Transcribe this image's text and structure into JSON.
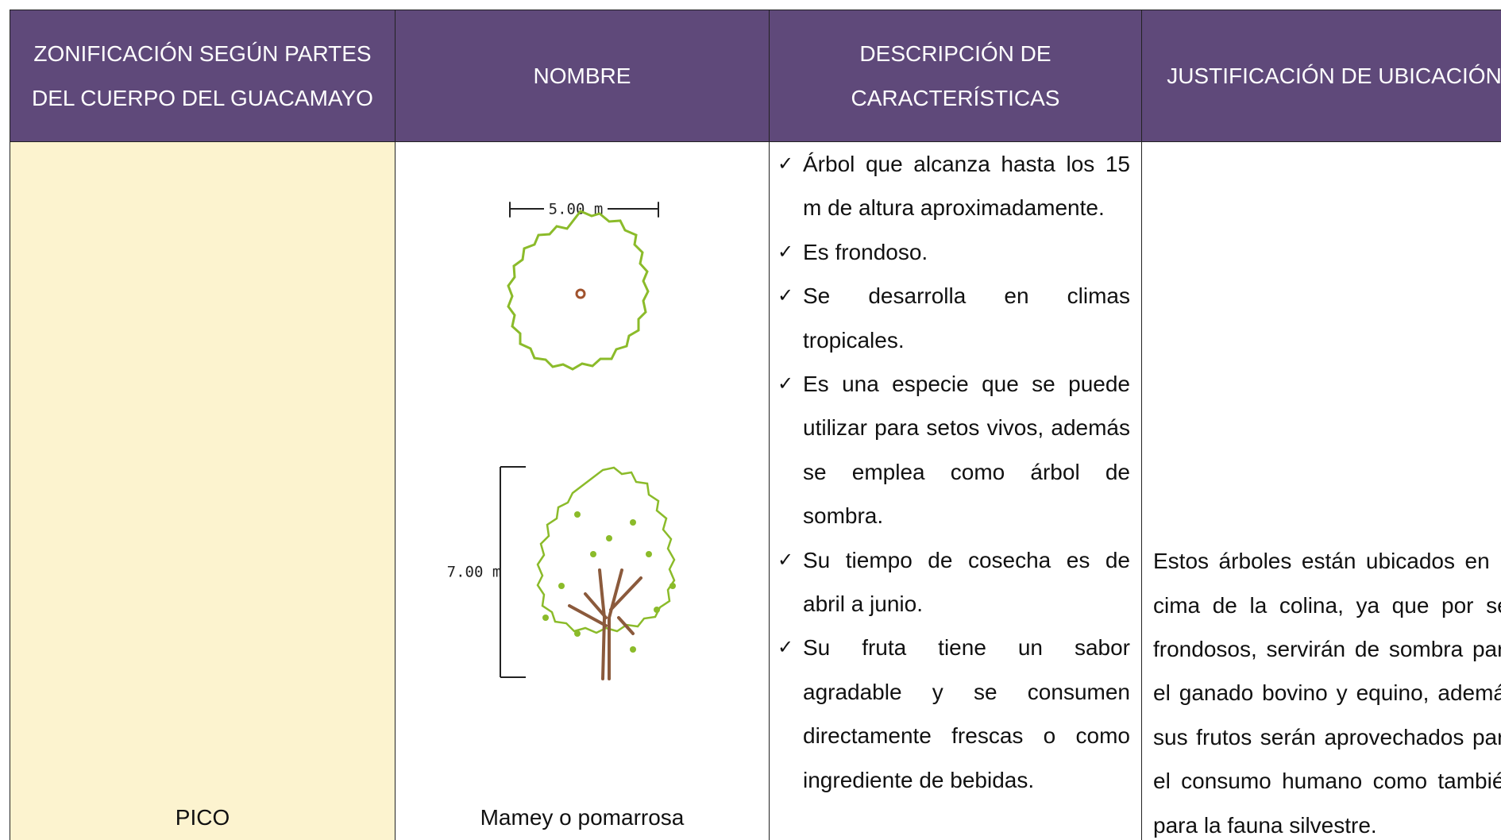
{
  "table": {
    "headers": [
      "ZONIFICACIÓN SEGÚN PARTES DEL CUERPO DEL GUACAMAYO",
      "NOMBRE",
      "DESCRIPCIÓN DE CARACTERÍSTICAS",
      "JUSTIFICACIÓN DE UBICACIÓN"
    ],
    "rows": [
      {
        "zone": "PICO",
        "name": "Mamey o pomarrosa",
        "description": [
          "Árbol que alcanza hasta los 15 m de altura aproximadamente.",
          "Es frondoso.",
          "Se desarrolla en climas tropicales.",
          "Es una especie que se puede utilizar para setos vivos, además se emplea como árbol de sombra.",
          "Su tiempo de cosecha es de abril a junio.",
          "Su fruta tiene un sabor agradable y se consumen directamente frescas o como ingrediente de bebidas."
        ],
        "justification": "Estos árboles están ubicados en la cima de la colina, ya que por ser frondosos, servirán de sombra para el ganado bovino y equino, además sus frutos serán aprovechados para el consumo humano como también para la fauna silvestre."
      }
    ]
  },
  "drawing": {
    "plan_label": "5.00 m",
    "elevation_label": "7.00 m"
  }
}
